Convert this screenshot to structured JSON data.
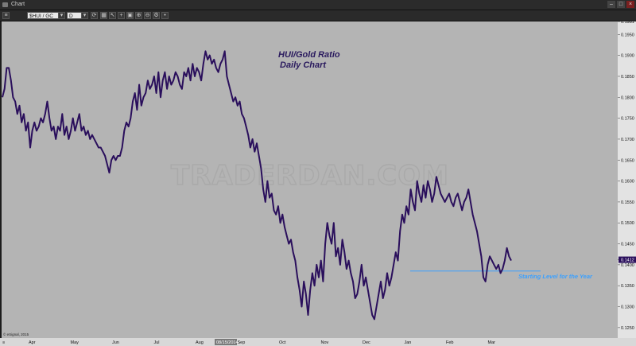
{
  "window": {
    "title": "Chart"
  },
  "toolbar": {
    "symbol": "$HUI / GC",
    "interval": "D"
  },
  "chart_data": {
    "type": "line",
    "title": "HUI/Gold Ratio",
    "subtitle": "Daily Chart",
    "watermark": "TRADERDAN.COM",
    "copyright": "© eSignal, 2015",
    "line_color": "#2a0f5c",
    "reference_color": "#3aa0ff",
    "ylim": [
      0.1225,
      0.1981
    ],
    "yticks": [
      "0.1981",
      "0.1950",
      "0.1900",
      "0.1850",
      "0.1800",
      "0.1750",
      "0.1700",
      "0.1650",
      "0.1600",
      "0.1550",
      "0.1500",
      "0.1450",
      "0.1412",
      "0.1400",
      "0.1350",
      "0.1300",
      "0.1250"
    ],
    "yticks_values": [
      0.1981,
      0.195,
      0.19,
      0.185,
      0.18,
      0.175,
      0.17,
      0.165,
      0.16,
      0.155,
      0.15,
      0.145,
      0.1412,
      0.14,
      0.135,
      0.13,
      0.125
    ],
    "months": [
      "Apr",
      "May",
      "Jun",
      "Jul",
      "Aug",
      "08/15/2014",
      "Sep",
      "Oct",
      "Nov",
      "Dec",
      "Jan",
      "Feb",
      "Mar"
    ],
    "last_value": "0.1412",
    "reference_line": {
      "value": 0.1385,
      "label": "Starting Level for the Year"
    },
    "series": [
      {
        "values": [
          0.18,
          0.182,
          0.187,
          0.187,
          0.184,
          0.18,
          0.179,
          0.176,
          0.178,
          0.174,
          0.176,
          0.172,
          0.174,
          0.168,
          0.172,
          0.174,
          0.172,
          0.173,
          0.175,
          0.174,
          0.176,
          0.179,
          0.175,
          0.172,
          0.173,
          0.17,
          0.173,
          0.172,
          0.176,
          0.171,
          0.173,
          0.17,
          0.172,
          0.175,
          0.172,
          0.174,
          0.176,
          0.172,
          0.173,
          0.171,
          0.172,
          0.17,
          0.171,
          0.17,
          0.169,
          0.168,
          0.168,
          0.167,
          0.166,
          0.164,
          0.162,
          0.165,
          0.166,
          0.165,
          0.166,
          0.166,
          0.168,
          0.172,
          0.174,
          0.173,
          0.175,
          0.179,
          0.181,
          0.177,
          0.183,
          0.178,
          0.18,
          0.181,
          0.184,
          0.182,
          0.183,
          0.185,
          0.181,
          0.186,
          0.18,
          0.184,
          0.186,
          0.182,
          0.185,
          0.183,
          0.184,
          0.186,
          0.185,
          0.183,
          0.182,
          0.186,
          0.185,
          0.187,
          0.184,
          0.188,
          0.185,
          0.187,
          0.186,
          0.184,
          0.188,
          0.191,
          0.189,
          0.19,
          0.188,
          0.189,
          0.187,
          0.186,
          0.188,
          0.189,
          0.191,
          0.185,
          0.183,
          0.181,
          0.179,
          0.18,
          0.178,
          0.179,
          0.176,
          0.175,
          0.173,
          0.171,
          0.168,
          0.17,
          0.167,
          0.169,
          0.166,
          0.163,
          0.158,
          0.155,
          0.16,
          0.156,
          0.157,
          0.153,
          0.152,
          0.154,
          0.15,
          0.152,
          0.149,
          0.147,
          0.145,
          0.146,
          0.143,
          0.141,
          0.137,
          0.134,
          0.13,
          0.136,
          0.133,
          0.128,
          0.134,
          0.138,
          0.135,
          0.14,
          0.137,
          0.141,
          0.136,
          0.145,
          0.15,
          0.147,
          0.145,
          0.15,
          0.142,
          0.144,
          0.14,
          0.146,
          0.143,
          0.139,
          0.141,
          0.138,
          0.136,
          0.132,
          0.133,
          0.136,
          0.14,
          0.135,
          0.137,
          0.134,
          0.131,
          0.128,
          0.127,
          0.13,
          0.133,
          0.136,
          0.132,
          0.134,
          0.138,
          0.135,
          0.137,
          0.14,
          0.143,
          0.141,
          0.148,
          0.152,
          0.15,
          0.154,
          0.152,
          0.158,
          0.155,
          0.153,
          0.16,
          0.157,
          0.155,
          0.159,
          0.156,
          0.16,
          0.158,
          0.155,
          0.157,
          0.161,
          0.159,
          0.157,
          0.156,
          0.155,
          0.156,
          0.157,
          0.155,
          0.154,
          0.156,
          0.157,
          0.155,
          0.153,
          0.155,
          0.156,
          0.158,
          0.155,
          0.152,
          0.15,
          0.148,
          0.145,
          0.142,
          0.137,
          0.136,
          0.14,
          0.142,
          0.141,
          0.14,
          0.139,
          0.14,
          0.138,
          0.139,
          0.141,
          0.144,
          0.142,
          0.141
        ]
      }
    ]
  }
}
